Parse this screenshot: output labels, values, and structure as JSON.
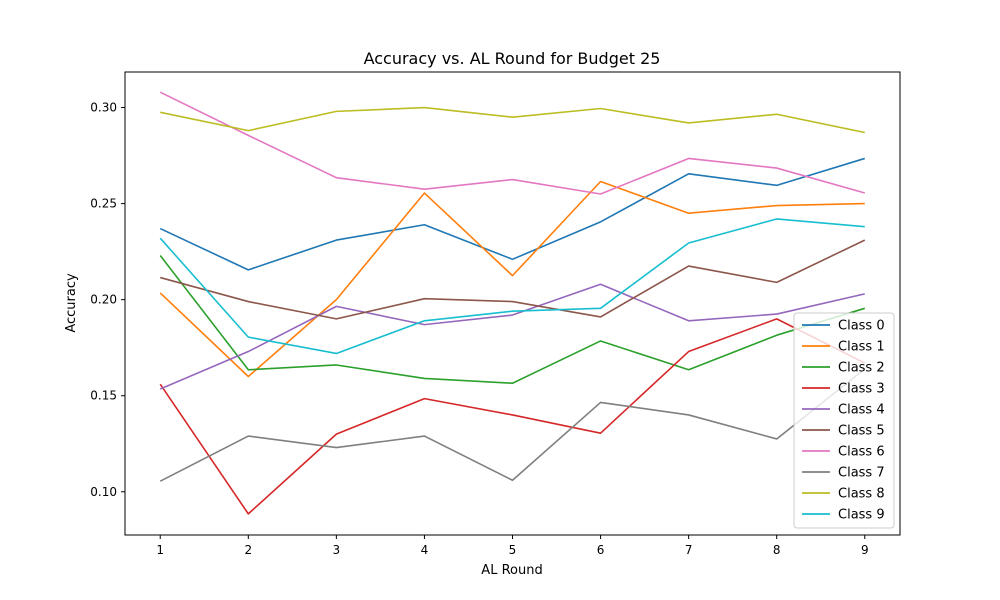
{
  "chart_data": {
    "type": "line",
    "title": "Accuracy vs. AL Round for Budget 25",
    "xlabel": "AL Round",
    "ylabel": "Accuracy",
    "x": [
      1,
      2,
      3,
      4,
      5,
      6,
      7,
      8,
      9
    ],
    "xlim": [
      0.6,
      9.4
    ],
    "ylim": [
      0.0775,
      0.3185
    ],
    "xticks": [
      "1",
      "2",
      "3",
      "4",
      "5",
      "6",
      "7",
      "8",
      "9"
    ],
    "yticks": [
      {
        "value": 0.1,
        "label": "0.10"
      },
      {
        "value": 0.15,
        "label": "0.15"
      },
      {
        "value": 0.2,
        "label": "0.20"
      },
      {
        "value": 0.25,
        "label": "0.25"
      },
      {
        "value": 0.3,
        "label": "0.30"
      }
    ],
    "grid": false,
    "legend_position": "lower-right",
    "series": [
      {
        "name": "Class 0",
        "color": "#1f77b4",
        "values": [
          0.237,
          0.2155,
          0.231,
          0.239,
          0.221,
          0.2405,
          0.2655,
          0.2595,
          0.2735
        ]
      },
      {
        "name": "Class 1",
        "color": "#ff7f0e",
        "values": [
          0.2035,
          0.16,
          0.2,
          0.2555,
          0.2125,
          0.2615,
          0.245,
          0.249,
          0.25
        ]
      },
      {
        "name": "Class 2",
        "color": "#2ca02c",
        "values": [
          0.223,
          0.1635,
          0.166,
          0.159,
          0.1565,
          0.1785,
          0.1635,
          0.1815,
          0.1955
        ]
      },
      {
        "name": "Class 3",
        "color": "#d62728",
        "values": [
          0.156,
          0.0885,
          0.13,
          0.1485,
          0.14,
          0.1305,
          0.173,
          0.19,
          0.167
        ]
      },
      {
        "name": "Class 4",
        "color": "#9467bd",
        "values": [
          0.1535,
          0.173,
          0.1965,
          0.187,
          0.192,
          0.208,
          0.189,
          0.1925,
          0.203
        ]
      },
      {
        "name": "Class 5",
        "color": "#8c564b",
        "values": [
          0.2115,
          0.199,
          0.19,
          0.2005,
          0.199,
          0.191,
          0.2175,
          0.209,
          0.231
        ]
      },
      {
        "name": "Class 6",
        "color": "#e377c2",
        "values": [
          0.308,
          0.2855,
          0.2635,
          0.2575,
          0.2625,
          0.255,
          0.2735,
          0.2685,
          0.2555
        ]
      },
      {
        "name": "Class 7",
        "color": "#7f7f7f",
        "values": [
          0.1055,
          0.129,
          0.123,
          0.129,
          0.106,
          0.1465,
          0.14,
          0.1275,
          0.164
        ]
      },
      {
        "name": "Class 8",
        "color": "#bcbd22",
        "values": [
          0.2975,
          0.288,
          0.298,
          0.3,
          0.295,
          0.2995,
          0.292,
          0.2965,
          0.287
        ]
      },
      {
        "name": "Class 9",
        "color": "#17becf",
        "values": [
          0.232,
          0.1805,
          0.172,
          0.189,
          0.194,
          0.1955,
          0.2295,
          0.242,
          0.238
        ]
      }
    ]
  }
}
